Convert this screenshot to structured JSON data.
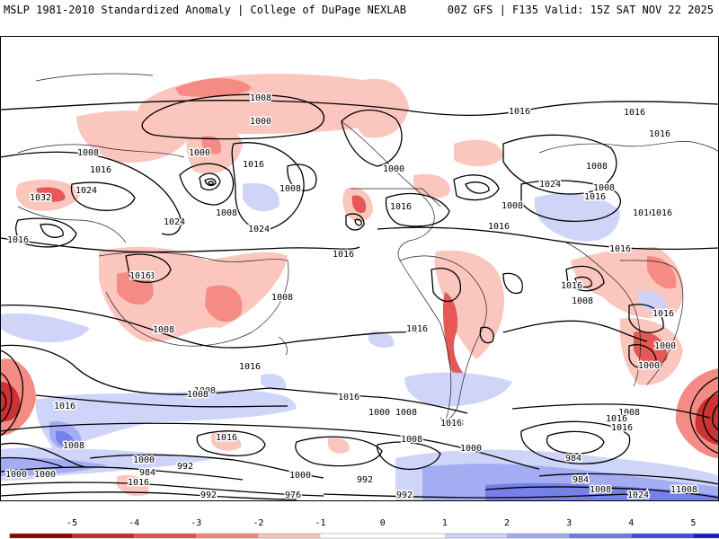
{
  "header": {
    "title_left": "MSLP 1981-2010 Standardized Anomaly | College of DuPage NEXLAB",
    "title_right": "00Z GFS | F135 Valid: 15Z SAT NOV 22 2025"
  },
  "colors": {
    "neg5": "#8b0000",
    "neg4": "#c8282a",
    "neg3": "#e4504e",
    "neg2": "#f5857e",
    "neg1": "#fbc4bb",
    "zero": "#ffffff",
    "pos1": "#cdd3f8",
    "pos2": "#a0a9f2",
    "pos3": "#6f7ae8",
    "pos4": "#3f4ce0",
    "pos5": "#1a1ad0"
  },
  "colorbar": {
    "ticks": [
      "-5",
      "-4",
      "-3",
      "-2",
      "-1",
      "0",
      "1",
      "2",
      "3",
      "4",
      "5"
    ]
  },
  "isobars": [
    "1008",
    "1000",
    "1016",
    "1008",
    "1016",
    "1000",
    "1024",
    "1032",
    "1016",
    "1008",
    "1024",
    "1024",
    "1016",
    "1008",
    "1008",
    "1016",
    "1016",
    "1016",
    "1008",
    "1024",
    "1016",
    "1008",
    "1016",
    "1008",
    "1000",
    "1016",
    "1016",
    "1016",
    "1016",
    "1016",
    "1008",
    "1016",
    "1008",
    "1016",
    "1000",
    "1008",
    "1008",
    "1016",
    "1016",
    "1016",
    "1008",
    "1000",
    "992",
    "984",
    "984",
    "1000",
    "984",
    "992",
    "1000",
    "1016",
    "992",
    "976",
    "992",
    "1008",
    "1008",
    "1000",
    "1000",
    "1008",
    "1016",
    "1024",
    "1008",
    "1016",
    "1016",
    "1000",
    "1000",
    "1008",
    "1016",
    "1008",
    "1008",
    "1016",
    "1008"
  ]
}
